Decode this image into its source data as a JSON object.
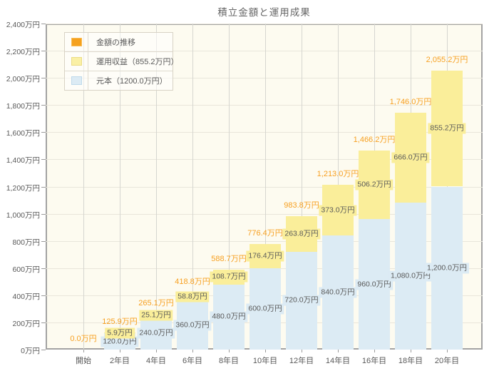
{
  "title": "積立金額と運用成果",
  "legend": {
    "items": [
      {
        "label": "金額の推移",
        "color": "#F5A11E",
        "border": "#F9BC55"
      },
      {
        "label": "運用収益（855.2万円）",
        "color": "#FAF0A5",
        "border": "#EBDC85"
      },
      {
        "label": "元本（1200.0万円）",
        "color": "#DCEBF4",
        "border": "#BFDAEB"
      }
    ]
  },
  "chart_data": {
    "type": "bar",
    "stacked": true,
    "title": "積立金額と運用成果",
    "categories": [
      "開始",
      "2年目",
      "4年目",
      "6年目",
      "8年目",
      "10年目",
      "12年目",
      "14年目",
      "16年目",
      "18年目",
      "20年目"
    ],
    "series": [
      {
        "name": "元本",
        "color": "#DCEBF4",
        "values": [
          0,
          120.0,
          240.0,
          360.0,
          480.0,
          600.0,
          720.0,
          840.0,
          960.0,
          1080.0,
          1200.0
        ],
        "labels": [
          "",
          "120.0万円",
          "240.0万円",
          "360.0万円",
          "480.0万円",
          "600.0万円",
          "720.0万円",
          "840.0万円",
          "960.0万円",
          "1,080.0万円",
          "1,200.0万円"
        ]
      },
      {
        "name": "運用収益",
        "color": "#FAEE9A",
        "values": [
          0,
          5.9,
          25.1,
          58.8,
          108.7,
          176.4,
          263.8,
          373.0,
          506.2,
          666.0,
          855.2
        ],
        "labels": [
          "",
          "5.9万円",
          "25.1万円",
          "58.8万円",
          "108.7万円",
          "176.4万円",
          "263.8万円",
          "373.0万円",
          "506.2万円",
          "666.0万円",
          "855.2万円"
        ]
      }
    ],
    "totals": {
      "name": "金額の推移",
      "color": "#F7A021",
      "values": [
        0.0,
        125.9,
        265.1,
        418.8,
        588.7,
        776.4,
        983.8,
        1213.0,
        1466.2,
        1746.0,
        2055.2
      ],
      "labels": [
        "0.0万円",
        "125.9万円",
        "265.1万円",
        "418.8万円",
        "588.7万円",
        "776.4万円",
        "983.8万円",
        "1,213.0万円",
        "1,466.2万円",
        "1,746.0万円",
        "2,055.2万円"
      ]
    },
    "ylim": [
      0,
      2400
    ],
    "ytick_step": 200,
    "ytick_labels": [
      "0万円",
      "200万円",
      "400万円",
      "600万円",
      "800万円",
      "1,000万円",
      "1,200万円",
      "1,400万円",
      "1,600万円",
      "1,800万円",
      "2,000万円",
      "2,200万円",
      "2,400万円"
    ],
    "grid": true,
    "legend_position": "top-left"
  },
  "colors": {
    "plot_bg": "#FDFBF0",
    "grid_h": "#E9E6DB",
    "grid_v": "#D6D6D0",
    "axis_border": "#A3A3A3",
    "text": "#595959"
  }
}
